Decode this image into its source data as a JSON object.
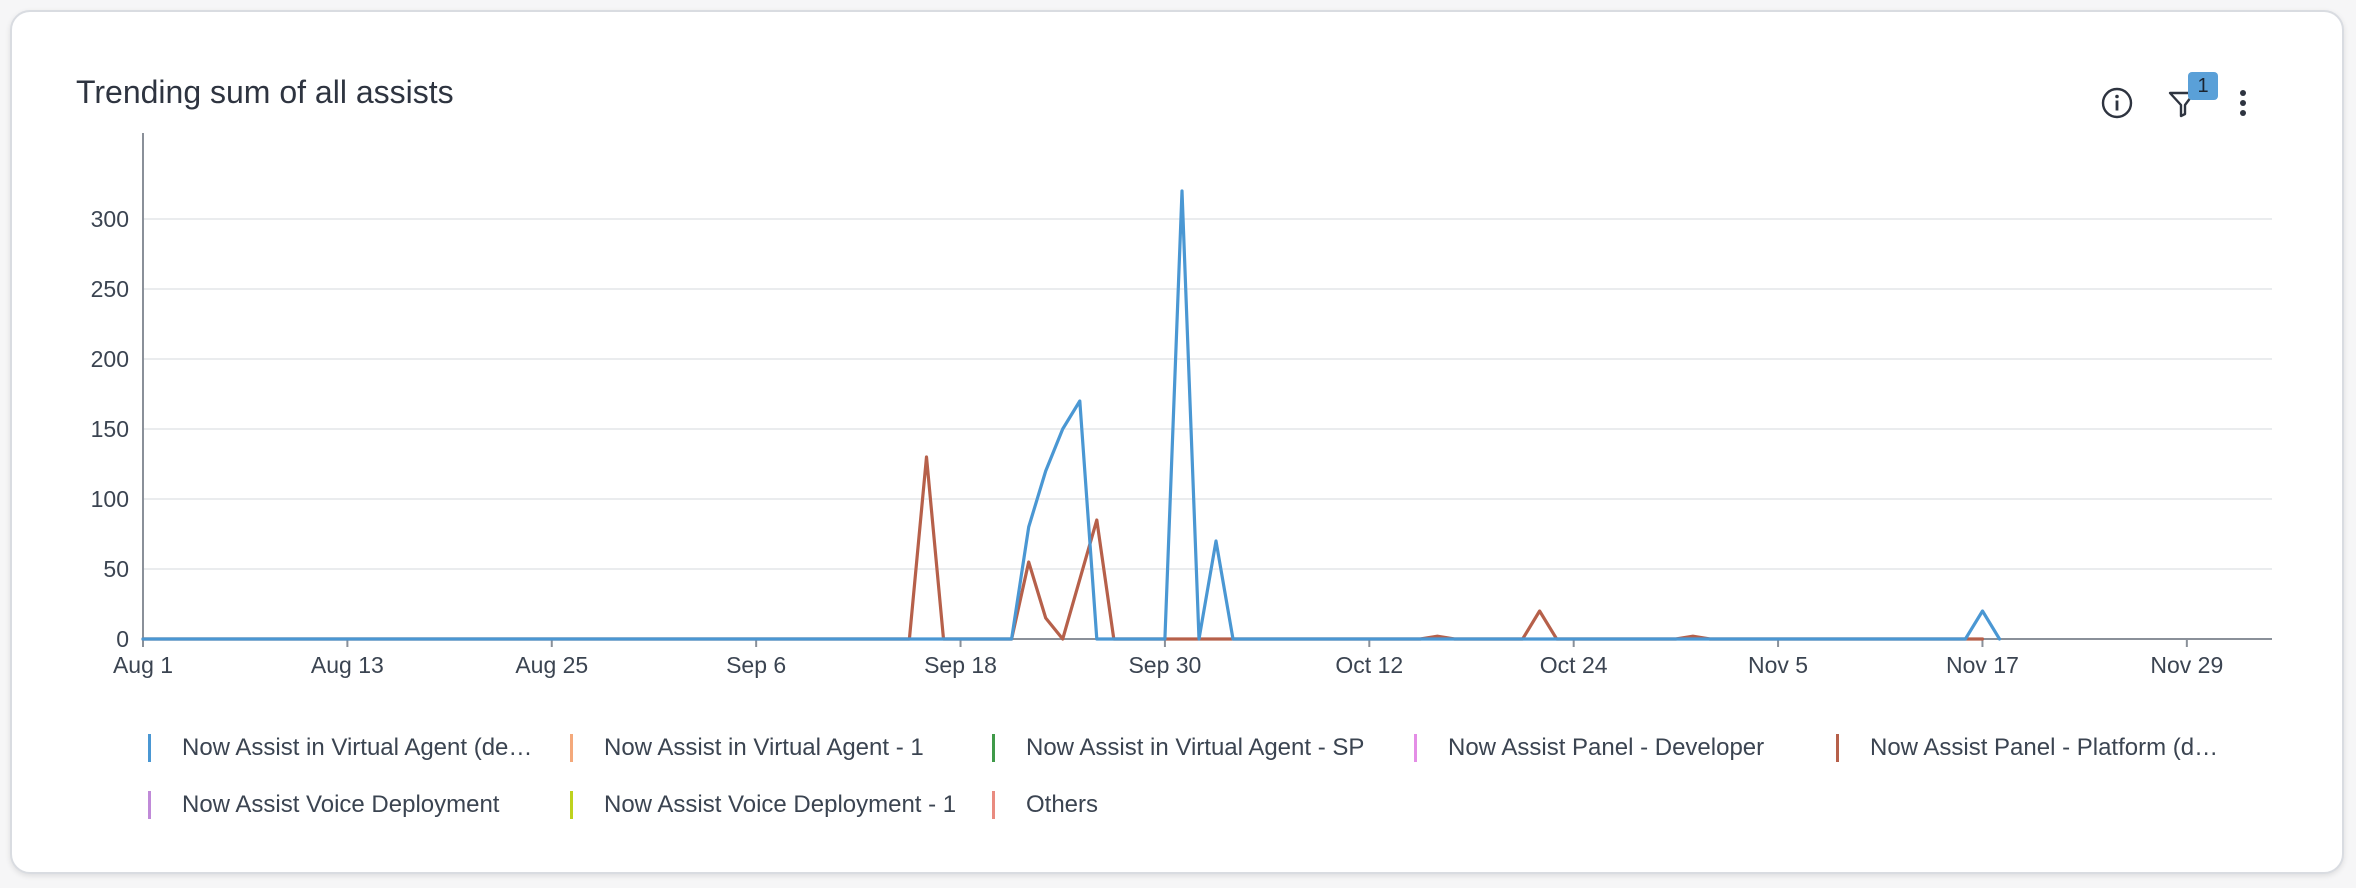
{
  "card": {
    "title": "Trending sum of all assists",
    "filter_count": "1"
  },
  "icons": {
    "info": "info-circle-icon",
    "filter": "filter-funnel-icon",
    "more": "more-vertical-icon"
  },
  "colors": {
    "axis": "#8a9099",
    "grid": "#e3e5e8",
    "tick_text": "#3b4451"
  },
  "chart_data": {
    "type": "line",
    "title": "Trending sum of all assists",
    "xlabel": "",
    "ylabel": "",
    "x_ticks": [
      "Aug 1",
      "Aug 13",
      "Aug 25",
      "Sep 6",
      "Sep 18",
      "Sep 30",
      "Oct 12",
      "Oct 24",
      "Nov 5",
      "Nov 17",
      "Nov 29"
    ],
    "y_ticks": [
      "0",
      "50",
      "100",
      "150",
      "200",
      "250",
      "300"
    ],
    "ylim": [
      0,
      330
    ],
    "xlim": [
      "Aug 1",
      "Dec 4"
    ],
    "grid": true,
    "legend_position": "bottom",
    "series": [
      {
        "name": "Now Assist in Virtual Agent (de…",
        "color": "#4a97d3",
        "points": [
          [
            "Aug 1",
            0
          ],
          [
            "Sep 21",
            0
          ],
          [
            "Sep 22",
            80
          ],
          [
            "Sep 23",
            120
          ],
          [
            "Sep 24",
            150
          ],
          [
            "Sep 25",
            170
          ],
          [
            "Sep 26",
            0
          ],
          [
            "Sep 30",
            0
          ],
          [
            "Oct 1",
            320
          ],
          [
            "Oct 2",
            0
          ],
          [
            "Oct 3",
            70
          ],
          [
            "Oct 4",
            0
          ],
          [
            "Nov 16",
            0
          ],
          [
            "Nov 17",
            20
          ],
          [
            "Nov 18",
            0
          ]
        ]
      },
      {
        "name": "Now Assist in Virtual Agent - 1",
        "color": "#f4a97b",
        "points": []
      },
      {
        "name": "Now Assist in Virtual Agent - SP",
        "color": "#3f9a49",
        "points": []
      },
      {
        "name": "Now Assist Panel - Developer",
        "color": "#e48ee6",
        "points": []
      },
      {
        "name": "Now Assist Panel - Platform (d…",
        "color": "#b6604a",
        "points": [
          [
            "Aug 1",
            0
          ],
          [
            "Sep 15",
            0
          ],
          [
            "Sep 16",
            130
          ],
          [
            "Sep 17",
            0
          ],
          [
            "Sep 21",
            0
          ],
          [
            "Sep 22",
            55
          ],
          [
            "Sep 23",
            15
          ],
          [
            "Sep 24",
            0
          ],
          [
            "Sep 26",
            85
          ],
          [
            "Sep 27",
            0
          ],
          [
            "Oct 15",
            0
          ],
          [
            "Oct 16",
            2
          ],
          [
            "Oct 17",
            0
          ],
          [
            "Oct 21",
            0
          ],
          [
            "Oct 22",
            20
          ],
          [
            "Oct 23",
            0
          ],
          [
            "Oct 30",
            0
          ],
          [
            "Oct 31",
            2
          ],
          [
            "Nov 1",
            0
          ],
          [
            "Nov 17",
            0
          ]
        ]
      },
      {
        "name": "Now Assist Voice Deployment",
        "color": "#c08ad8",
        "points": []
      },
      {
        "name": "Now Assist Voice Deployment - 1",
        "color": "#bed21e",
        "points": []
      },
      {
        "name": "Others",
        "color": "#e98b80",
        "points": []
      }
    ]
  }
}
